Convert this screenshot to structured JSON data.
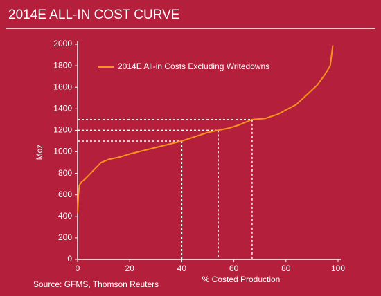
{
  "chart_data": {
    "type": "line",
    "title": "2014E ALL-IN COST CURVE",
    "ylabel": "Moz",
    "xlabel": "% Costed Production",
    "source": "Source: GFMS, Thomson Reuters",
    "xlim": [
      0,
      100
    ],
    "ylim": [
      0,
      2000
    ],
    "xticks": [
      0,
      20,
      40,
      60,
      80,
      100
    ],
    "yticks": [
      0,
      200,
      400,
      600,
      800,
      1000,
      1200,
      1400,
      1600,
      1800,
      2000
    ],
    "legend": "top-left",
    "series": [
      {
        "name": "2014E All-in Costs Excluding Writedowns",
        "color": "#f7941d",
        "x": [
          0,
          0.3,
          0.7,
          1.5,
          3,
          5,
          7,
          9,
          12,
          16,
          20,
          25,
          30,
          35,
          40,
          45,
          50,
          54,
          58,
          62,
          67,
          72,
          77,
          80,
          84,
          88,
          92,
          95,
          97,
          98
        ],
        "values": [
          430,
          600,
          690,
          720,
          750,
          800,
          850,
          900,
          930,
          950,
          980,
          1010,
          1040,
          1070,
          1100,
          1140,
          1180,
          1200,
          1220,
          1250,
          1300,
          1310,
          1350,
          1390,
          1440,
          1530,
          1620,
          1720,
          1800,
          1990
        ]
      }
    ],
    "reference_lines": [
      {
        "x": 40,
        "y": 1100
      },
      {
        "x": 54,
        "y": 1200
      },
      {
        "x": 67,
        "y": 1300
      }
    ]
  }
}
